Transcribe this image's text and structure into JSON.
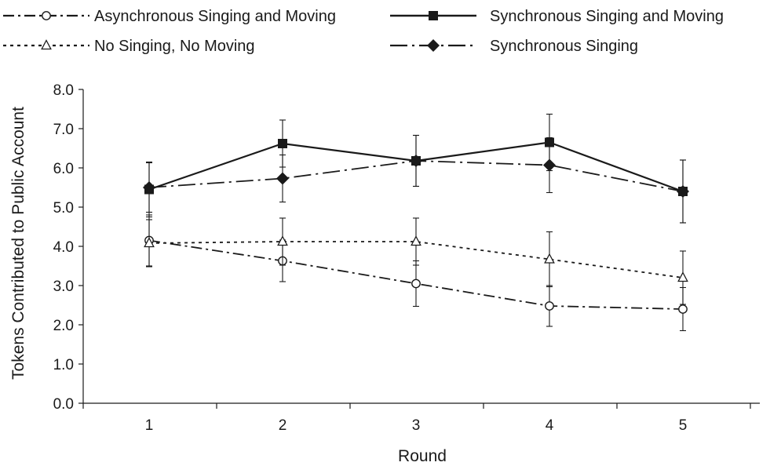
{
  "chart_data": {
    "type": "line",
    "title": "",
    "xlabel": "Round",
    "ylabel": "Tokens Contributed to Public Account",
    "x": [
      1,
      2,
      3,
      4,
      5
    ],
    "x_tick_labels": [
      "1",
      "2",
      "3",
      "4",
      "5"
    ],
    "ylim": [
      0,
      8
    ],
    "y_ticks": [
      0,
      1,
      2,
      3,
      4,
      5,
      6,
      7,
      8
    ],
    "y_tick_labels": [
      "0.0",
      "1.0",
      "2.0",
      "3.0",
      "4.0",
      "5.0",
      "6.0",
      "7.0",
      "8.0"
    ],
    "grid": false,
    "legend_position": "top",
    "series": [
      {
        "name": "Asynchronous Singing and Moving",
        "marker": "circle-open",
        "line_style": "dash-dot",
        "color": "#1a1a1a",
        "values": [
          4.15,
          3.63,
          3.05,
          2.48,
          2.4
        ],
        "errors": [
          0.65,
          0.53,
          0.58,
          0.52,
          0.55
        ]
      },
      {
        "name": "Synchronous Singing and Moving",
        "marker": "square-filled",
        "line_style": "solid",
        "color": "#1a1a1a",
        "values": [
          5.45,
          6.62,
          6.18,
          6.65,
          5.4
        ],
        "errors": [
          0.7,
          0.6,
          0.65,
          0.72,
          0.8
        ]
      },
      {
        "name": "No Singing, No Moving",
        "marker": "triangle-open",
        "line_style": "dotted",
        "color": "#1a1a1a",
        "values": [
          4.08,
          4.12,
          4.12,
          3.67,
          3.2
        ],
        "errors": [
          0.6,
          0.6,
          0.6,
          0.7,
          0.68
        ]
      },
      {
        "name": "Synchronous Singing",
        "marker": "diamond-filled",
        "line_style": "long-dash-dot",
        "color": "#1a1a1a",
        "values": [
          5.5,
          5.73,
          6.18,
          6.07,
          5.4
        ],
        "errors": [
          0.63,
          0.6,
          0.65,
          0.7,
          0.8
        ]
      }
    ]
  }
}
